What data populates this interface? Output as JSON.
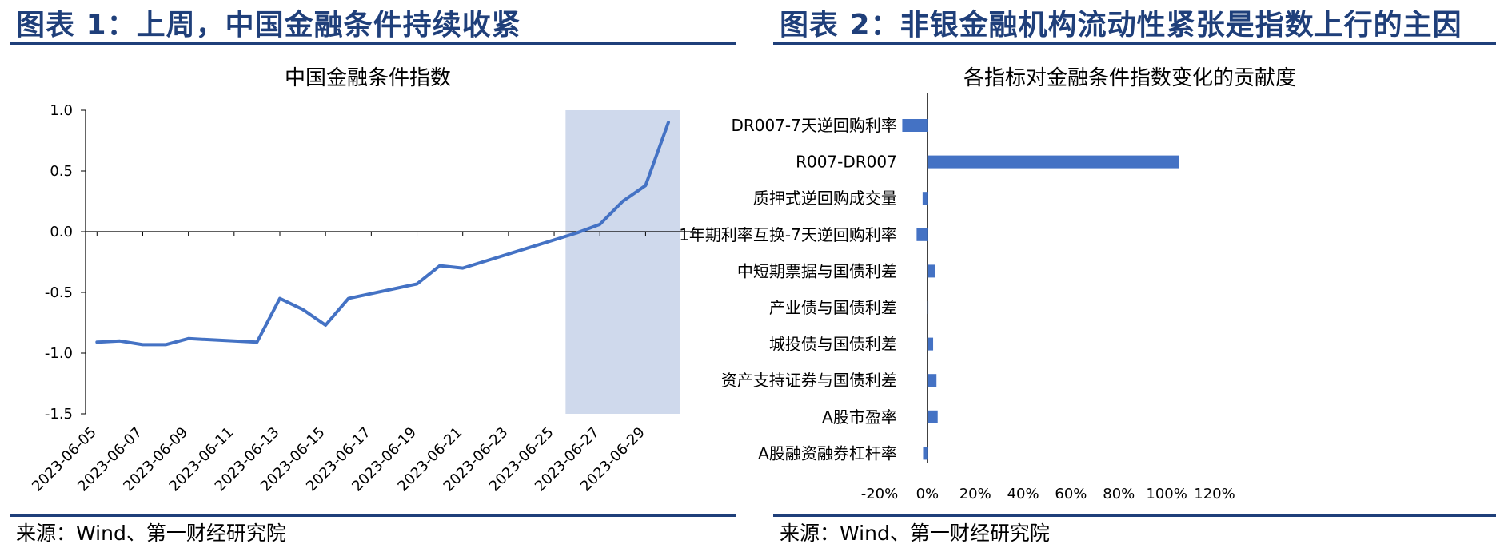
{
  "figures": [
    {
      "fig_title": "图表 1：上周，中国金融条件持续收紧",
      "source": "来源：Wind、第一财经研究院"
    },
    {
      "fig_title": "图表 2：非银金融机构流动性紧张是指数上行的主因",
      "source": "来源：Wind、第一财经研究院"
    }
  ],
  "colors": {
    "accent": "#1f3f7a",
    "series": "#4472c4",
    "highlight": "#cfd9ec"
  },
  "chart_data": [
    {
      "type": "line",
      "title": "中国金融条件指数",
      "xlabel": "",
      "ylabel": "",
      "ylim": [
        -1.5,
        1.0
      ],
      "yticks": [
        "1.0",
        "0.5",
        "0.0",
        "-0.5",
        "-1.0",
        "-1.5"
      ],
      "xtick_labels": [
        "2023-06-05",
        "2023-06-07",
        "2023-06-09",
        "2023-06-11",
        "2023-06-13",
        "2023-06-15",
        "2023-06-17",
        "2023-06-19",
        "2023-06-21",
        "2023-06-23",
        "2023-06-25",
        "2023-06-27",
        "2023-06-29"
      ],
      "highlight_range": [
        "2023-06-26",
        "2023-06-30"
      ],
      "grid": false,
      "legend": "none",
      "series": [
        {
          "x": [
            "2023-06-05",
            "2023-06-06",
            "2023-06-07",
            "2023-06-08",
            "2023-06-09",
            "2023-06-12",
            "2023-06-13",
            "2023-06-14",
            "2023-06-15",
            "2023-06-16",
            "2023-06-19",
            "2023-06-20",
            "2023-06-21",
            "2023-06-26",
            "2023-06-27",
            "2023-06-28",
            "2023-06-29",
            "2023-06-30"
          ],
          "values": [
            -0.91,
            -0.9,
            -0.93,
            -0.93,
            -0.88,
            -0.91,
            -0.55,
            -0.64,
            -0.77,
            -0.55,
            -0.43,
            -0.28,
            -0.3,
            -0.01,
            0.06,
            0.25,
            0.38,
            0.9
          ]
        }
      ]
    },
    {
      "type": "bar",
      "orientation": "horizontal",
      "title": "各指标对金融条件指数变化的贡献度",
      "xlabel": "",
      "ylabel": "",
      "xlim": [
        -20,
        120
      ],
      "xticks": [
        "-20%",
        "0%",
        "20%",
        "40%",
        "60%",
        "80%",
        "100%",
        "120%"
      ],
      "grid": false,
      "legend": "none",
      "categories": [
        "DR007-7天逆回购利率",
        "R007-DR007",
        "质押式逆回购成交量",
        "1年期利率互换-7天逆回购利率",
        "中短期票据与国债利差",
        "产业债与国债利差",
        "城投债与国债利差",
        "资产支持证券与国债利差",
        "A股市盈率",
        "A股融资融券杠杆率"
      ],
      "values": [
        -10.5,
        105,
        -2,
        -4.5,
        3.2,
        0.4,
        2.4,
        3.8,
        4.3,
        -1.8
      ]
    }
  ]
}
